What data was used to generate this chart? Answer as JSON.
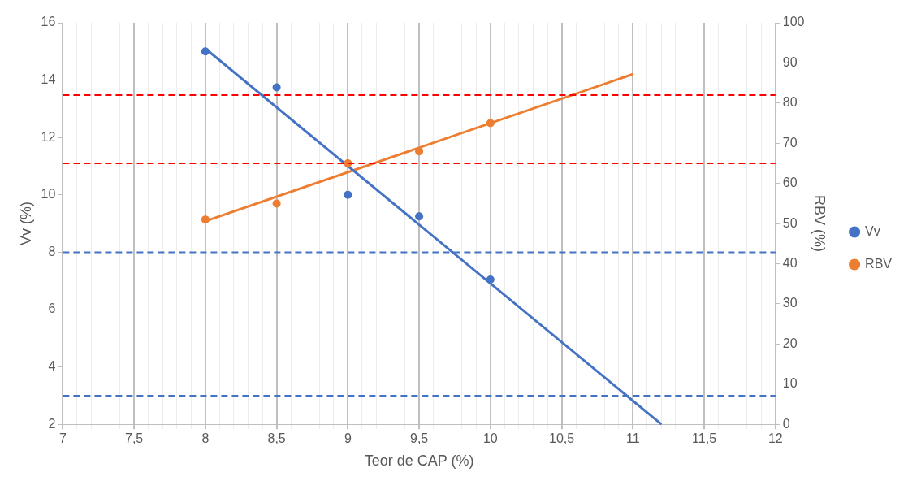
{
  "chart_data": {
    "type": "scatter",
    "xlabel": "Teor de CAP (%)",
    "ylabel": "Vv (%)",
    "y2label": "RBV (%)",
    "xlim": [
      7,
      12
    ],
    "xticks": [
      {
        "value": 7,
        "label": "7"
      },
      {
        "value": 7.1,
        "label": null
      },
      {
        "value": 7.2,
        "label": null
      },
      {
        "value": 7.3,
        "label": null
      },
      {
        "value": 7.4,
        "label": null
      },
      {
        "value": 7.5,
        "label": "7,5"
      },
      {
        "value": 7.6,
        "label": null
      },
      {
        "value": 7.7,
        "label": null
      },
      {
        "value": 7.8,
        "label": null
      },
      {
        "value": 7.9,
        "label": null
      },
      {
        "value": 8,
        "label": "8"
      },
      {
        "value": 8.1,
        "label": null
      },
      {
        "value": 8.2,
        "label": null
      },
      {
        "value": 8.3,
        "label": null
      },
      {
        "value": 8.4,
        "label": null
      },
      {
        "value": 8.5,
        "label": "8,5"
      },
      {
        "value": 8.6,
        "label": null
      },
      {
        "value": 8.7,
        "label": null
      },
      {
        "value": 8.8,
        "label": null
      },
      {
        "value": 8.9,
        "label": null
      },
      {
        "value": 9,
        "label": "9"
      },
      {
        "value": 9.1,
        "label": null
      },
      {
        "value": 9.2,
        "label": null
      },
      {
        "value": 9.3,
        "label": null
      },
      {
        "value": 9.4,
        "label": null
      },
      {
        "value": 9.5,
        "label": "9,5"
      },
      {
        "value": 9.6,
        "label": null
      },
      {
        "value": 9.7,
        "label": null
      },
      {
        "value": 9.8,
        "label": null
      },
      {
        "value": 9.9,
        "label": null
      },
      {
        "value": 10,
        "label": "10"
      },
      {
        "value": 10.1,
        "label": null
      },
      {
        "value": 10.2,
        "label": null
      },
      {
        "value": 10.3,
        "label": null
      },
      {
        "value": 10.4,
        "label": null
      },
      {
        "value": 10.5,
        "label": "10,5"
      },
      {
        "value": 10.6,
        "label": null
      },
      {
        "value": 10.7,
        "label": null
      },
      {
        "value": 10.8,
        "label": null
      },
      {
        "value": 10.9,
        "label": null
      },
      {
        "value": 11,
        "label": "11"
      },
      {
        "value": 11.1,
        "label": null
      },
      {
        "value": 11.2,
        "label": null
      },
      {
        "value": 11.3,
        "label": null
      },
      {
        "value": 11.4,
        "label": null
      },
      {
        "value": 11.5,
        "label": "11,5"
      },
      {
        "value": 11.6,
        "label": null
      },
      {
        "value": 11.7,
        "label": null
      },
      {
        "value": 11.8,
        "label": null
      },
      {
        "value": 11.9,
        "label": null
      },
      {
        "value": 12,
        "label": "12"
      }
    ],
    "ylim": [
      2,
      16
    ],
    "yticks": [
      2,
      4,
      6,
      8,
      10,
      12,
      14,
      16
    ],
    "y2lim": [
      0,
      100
    ],
    "y2ticks": [
      0,
      10,
      20,
      30,
      40,
      50,
      60,
      70,
      80,
      90,
      100
    ],
    "grid": "x",
    "legend": "right",
    "marker": "circle",
    "series": [
      {
        "name": "Vv",
        "color": "#4472c4",
        "x": [
          8,
          8.5,
          9,
          9.5,
          10
        ],
        "values": [
          15.0,
          13.75,
          10.0,
          9.25,
          7.05
        ]
      },
      {
        "name": "RBV",
        "color": "#ed7d31",
        "axis": "y2",
        "x": [
          8,
          8.5,
          9,
          9.5,
          10
        ],
        "values": [
          51,
          55,
          65,
          68,
          75
        ]
      },
      {
        "type": "line",
        "color": "#4472c4",
        "marker": "none",
        "x": [
          8,
          11.2
        ],
        "values": [
          15.1,
          2.0
        ]
      },
      {
        "type": "line",
        "color": "#ed7d31",
        "axis": "y2",
        "marker": "none",
        "x": [
          8,
          11
        ],
        "values": [
          50.6,
          87.2
        ]
      }
    ],
    "ref_lines": [
      {
        "axis": "y2",
        "value": 82,
        "color": "#ff0000",
        "line_style": "dashed"
      },
      {
        "axis": "y2",
        "value": 65,
        "color": "#ff0000",
        "line_style": "dashed"
      },
      {
        "axis": "y",
        "value": 8,
        "color": "#4472c4",
        "line_style": "dashed"
      },
      {
        "axis": "y",
        "value": 3,
        "color": "#4472c4",
        "line_style": "dashed"
      }
    ]
  }
}
